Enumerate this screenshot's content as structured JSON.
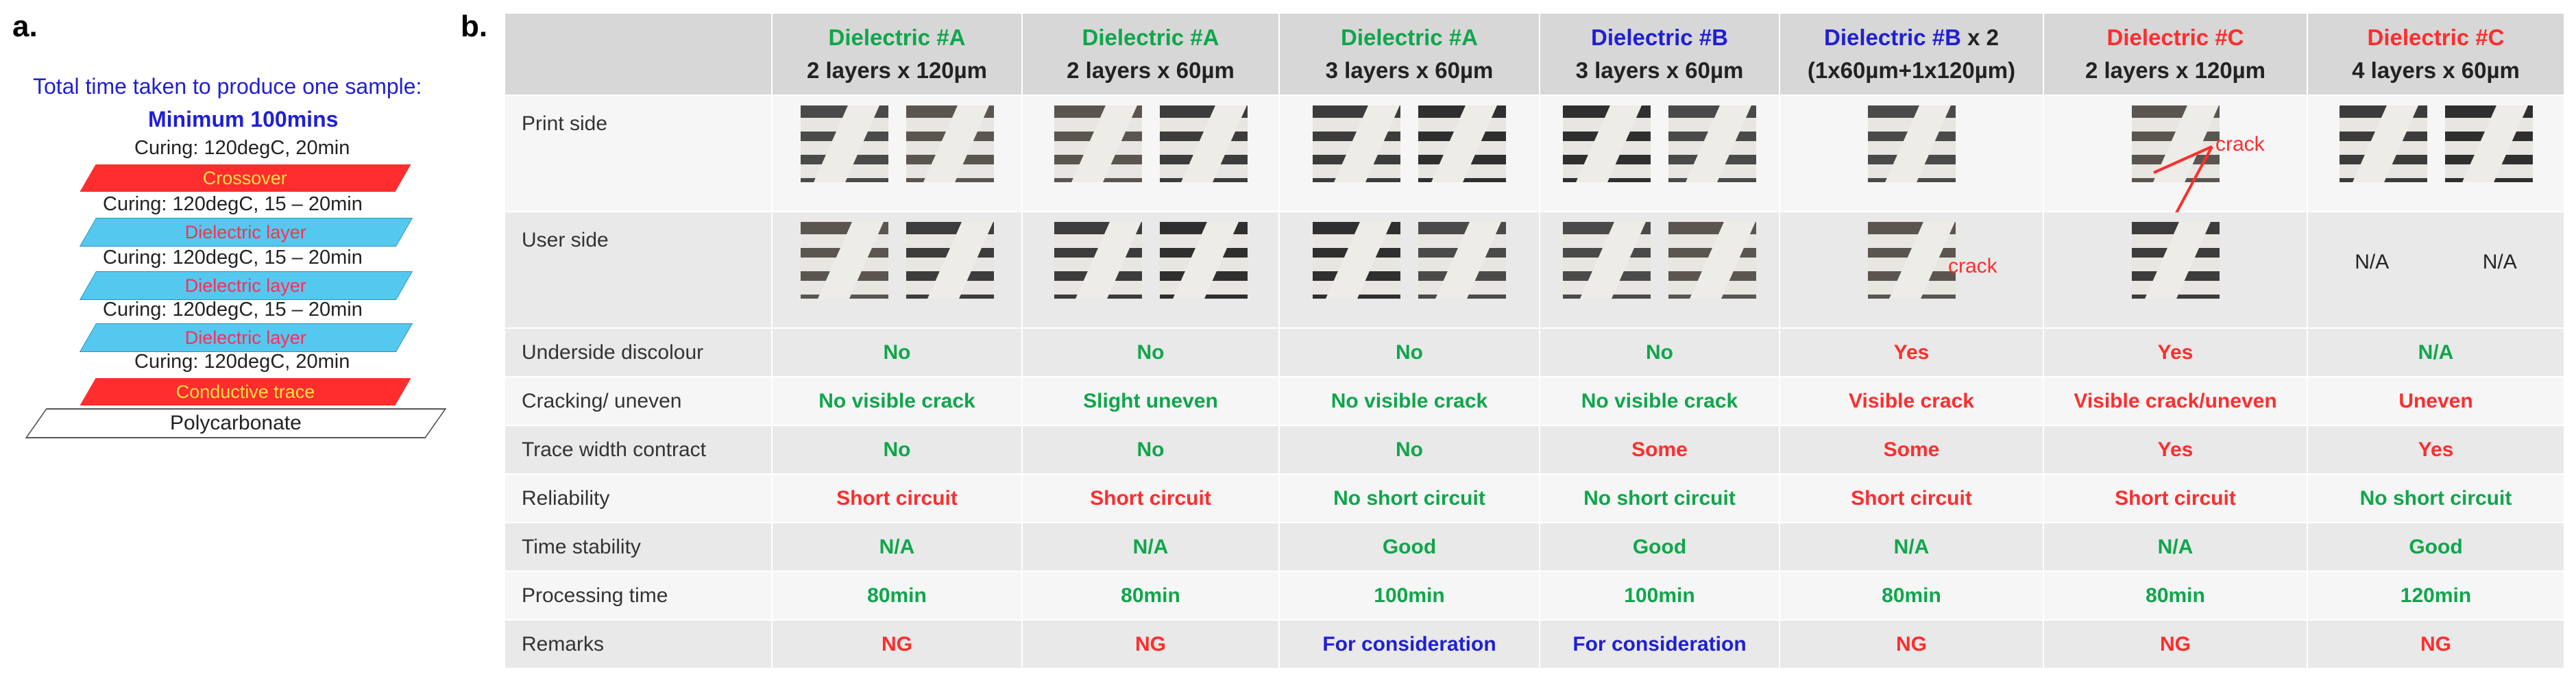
{
  "panel_a": {
    "label": "a.",
    "title": "Total time taken to produce one sample:",
    "minimum": "Minimum 100mins",
    "stack": [
      {
        "kind": "curing",
        "text": "Curing: 120degC, 20min"
      },
      {
        "kind": "layer-red",
        "text": "Crossover"
      },
      {
        "kind": "curing",
        "text": "Curing: 120degC, 15 – 20min"
      },
      {
        "kind": "layer-cyan",
        "text": "Dielectric layer"
      },
      {
        "kind": "curing",
        "text": "Curing: 120degC, 15 – 20min"
      },
      {
        "kind": "layer-cyan",
        "text": "Dielectric layer"
      },
      {
        "kind": "curing",
        "text": "Curing: 120degC, 15 – 20min"
      },
      {
        "kind": "layer-cyan",
        "text": "Dielectric layer"
      },
      {
        "kind": "curing",
        "text": "Curing: 120degC, 20min"
      },
      {
        "kind": "layer-red",
        "text": "Conductive trace"
      },
      {
        "kind": "layer-white",
        "text": "Polycarbonate"
      }
    ]
  },
  "panel_b": {
    "label": "b.",
    "columns": [
      {
        "name": "Dielectric #A",
        "suffix": "",
        "sub": "2 layers x 120µm",
        "color": "#0fa64b"
      },
      {
        "name": "Dielectric #A",
        "suffix": "",
        "sub": "2 layers x 60µm",
        "color": "#0fa64b"
      },
      {
        "name": "Dielectric #A",
        "suffix": "",
        "sub": "3 layers x 60µm",
        "color": "#0fa64b"
      },
      {
        "name": "Dielectric #B",
        "suffix": "",
        "sub": "3 layers x 60µm",
        "color": "#1f1fd6"
      },
      {
        "name": "Dielectric #B",
        "suffix": " x 2",
        "sub": "(1x60µm+1x120µm)",
        "color": "#1f1fd6"
      },
      {
        "name": "Dielectric #C",
        "suffix": "",
        "sub": "2 layers x 120µm",
        "color": "#ff2d2d"
      },
      {
        "name": "Dielectric #C",
        "suffix": "",
        "sub": "4 layers x 60µm",
        "color": "#ff2d2d"
      }
    ],
    "image_rows": [
      {
        "label": "Print side",
        "crack_label": "crack"
      },
      {
        "label": "User side",
        "crack_label": "crack",
        "na": [
          "N/A",
          "N/A"
        ]
      }
    ],
    "rows": [
      {
        "label": "Underside discolour",
        "values": [
          "No",
          "No",
          "No",
          "No",
          "Yes",
          "Yes",
          "N/A"
        ],
        "colors": [
          "g",
          "g",
          "g",
          "g",
          "r",
          "r",
          "g"
        ]
      },
      {
        "label": "Cracking/ uneven",
        "values": [
          "No visible crack",
          "Slight uneven",
          "No visible crack",
          "No visible crack",
          "Visible crack",
          "Visible crack/uneven",
          "Uneven"
        ],
        "colors": [
          "g",
          "g",
          "g",
          "g",
          "r",
          "r",
          "r"
        ]
      },
      {
        "label": "Trace width contract",
        "values": [
          "No",
          "No",
          "No",
          "Some",
          "Some",
          "Yes",
          "Yes"
        ],
        "colors": [
          "g",
          "g",
          "g",
          "r",
          "r",
          "r",
          "r"
        ]
      },
      {
        "label": "Reliability",
        "values": [
          "Short circuit",
          "Short circuit",
          "No short circuit",
          "No short circuit",
          "Short circuit",
          "Short circuit",
          "No short circuit"
        ],
        "colors": [
          "r",
          "r",
          "g",
          "g",
          "r",
          "r",
          "g"
        ]
      },
      {
        "label": "Time stability",
        "values": [
          "N/A",
          "N/A",
          "Good",
          "Good",
          "N/A",
          "N/A",
          "Good"
        ],
        "colors": [
          "g",
          "g",
          "g",
          "g",
          "g",
          "g",
          "g"
        ]
      },
      {
        "label": "Processing time",
        "values": [
          "80min",
          "80min",
          "100min",
          "100min",
          "80min",
          "80min",
          "120min"
        ],
        "colors": [
          "g",
          "g",
          "g",
          "g",
          "g",
          "g",
          "g"
        ]
      },
      {
        "label": "Remarks",
        "values": [
          "NG",
          "NG",
          "For consideration",
          "For consideration",
          "NG",
          "NG",
          "NG"
        ],
        "colors": [
          "r",
          "r",
          "b",
          "b",
          "r",
          "r",
          "r"
        ]
      }
    ]
  }
}
